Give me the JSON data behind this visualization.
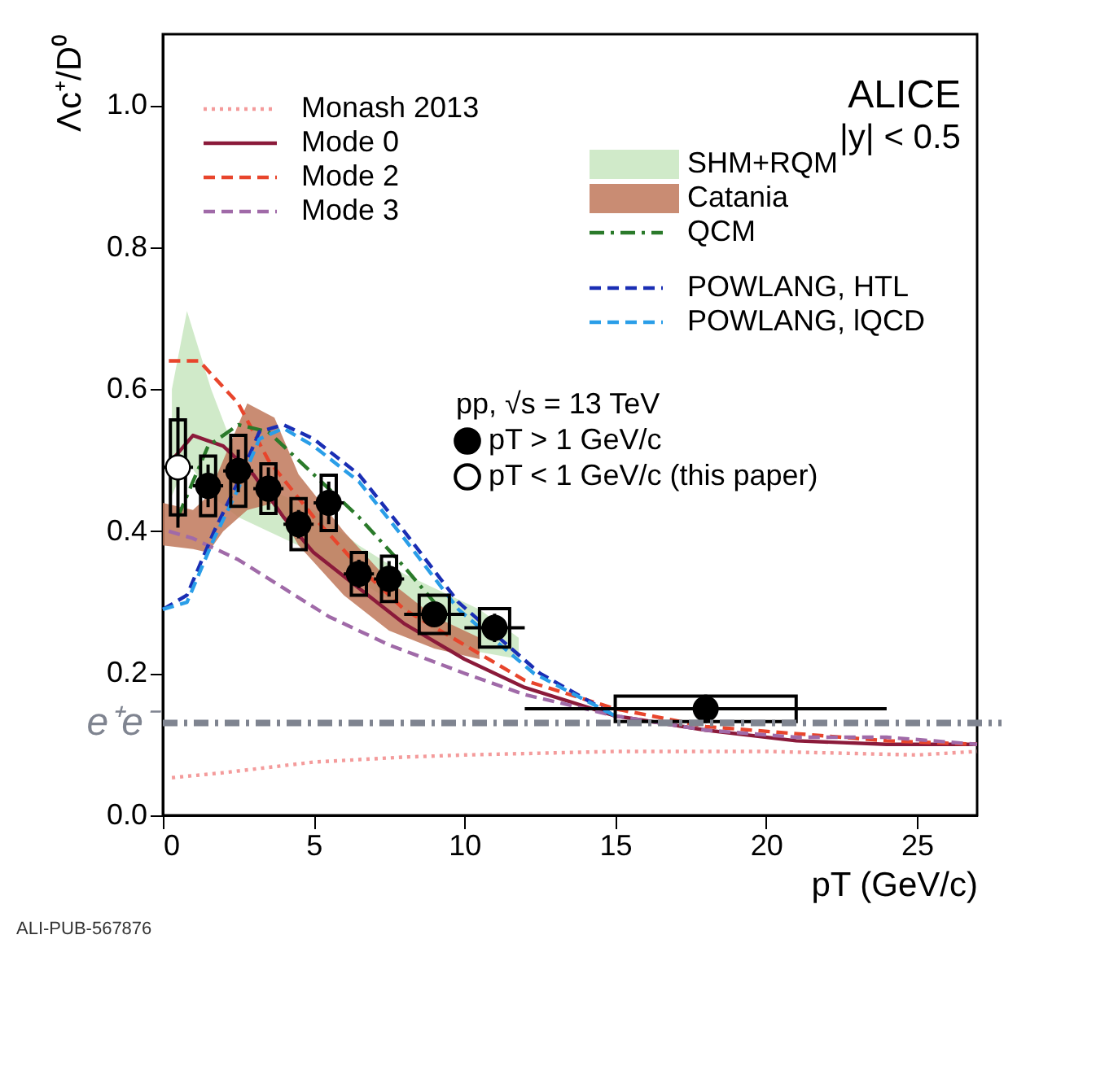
{
  "chart_data": {
    "type": "line",
    "xlabel": "pT (GeV/c)",
    "ylabel": "Λc⁺/D⁰",
    "xlim": [
      0,
      27
    ],
    "ylim": [
      0,
      1.1
    ],
    "xticks": [
      0,
      5,
      10,
      15,
      20,
      25
    ],
    "yticks": [
      {
        "value": 0,
        "label": "0.0"
      },
      {
        "value": 0.2,
        "label": "0.2"
      },
      {
        "value": 0.4,
        "label": "0.4"
      },
      {
        "value": 0.6,
        "label": "0.6"
      },
      {
        "value": 0.8,
        "label": "0.8"
      },
      {
        "value": 1,
        "label": "1.0"
      }
    ],
    "grid": false,
    "legend": "top",
    "annotations": [
      "ALICE",
      "|y| < 0.5",
      "pp, √s = 13 TeV",
      "ALI-PUB-567876"
    ],
    "ref_lines": [
      {
        "axis": "y",
        "value": 0.13,
        "label": "e⁺e⁻",
        "color": "#7f8490",
        "line_style": "dashdot"
      }
    ],
    "series": [
      {
        "name": "Monash 2013",
        "color": "#f49b9b",
        "line_style": "dotted",
        "x": [
          0.3,
          2,
          5,
          8,
          10,
          13,
          15,
          18,
          20,
          23,
          25,
          27
        ],
        "values": [
          0.053,
          0.06,
          0.075,
          0.082,
          0.085,
          0.088,
          0.09,
          0.09,
          0.09,
          0.087,
          0.085,
          0.09
        ]
      },
      {
        "name": "Mode 0",
        "color": "#8b1a3a",
        "line_style": "solid",
        "x": [
          0.3,
          1,
          2,
          3,
          4,
          5,
          6.5,
          8,
          10,
          12,
          15,
          18,
          21,
          24,
          27
        ],
        "values": [
          0.5,
          0.535,
          0.52,
          0.48,
          0.42,
          0.37,
          0.32,
          0.27,
          0.22,
          0.18,
          0.14,
          0.12,
          0.105,
          0.1,
          0.1
        ]
      },
      {
        "name": "Mode 2",
        "color": "#e8452c",
        "line_style": "dashed",
        "x": [
          0.2,
          1.2,
          2.5,
          3.5,
          5,
          6.5,
          8,
          10,
          12,
          15,
          18,
          21,
          24,
          27
        ],
        "values": [
          0.64,
          0.64,
          0.58,
          0.5,
          0.42,
          0.35,
          0.29,
          0.24,
          0.19,
          0.15,
          0.125,
          0.115,
          0.105,
          0.1
        ]
      },
      {
        "name": "Mode 3",
        "color": "#a06aa8",
        "line_style": "dashed",
        "x": [
          0.2,
          1,
          2.5,
          4,
          5.5,
          7.5,
          10,
          12,
          15,
          18,
          21,
          24,
          27
        ],
        "values": [
          0.4,
          0.39,
          0.36,
          0.32,
          0.28,
          0.24,
          0.2,
          0.17,
          0.14,
          0.12,
          0.11,
          0.11,
          0.1
        ]
      },
      {
        "name": "SHM+RQM",
        "type": "area",
        "color": "#c8e6c0",
        "x": [
          0.3,
          0.8,
          1.6,
          2.5,
          3.5,
          5,
          6.5,
          8,
          9,
          10.5,
          11.8
        ],
        "values": [
          null,
          null,
          null,
          null,
          null,
          null,
          null,
          null,
          null,
          null,
          null
        ],
        "lower": [
          0.45,
          0.5,
          0.45,
          0.42,
          0.4,
          0.37,
          0.33,
          0.29,
          0.26,
          0.23,
          0.22
        ],
        "upper": [
          0.6,
          0.71,
          0.6,
          0.5,
          0.46,
          0.43,
          0.38,
          0.34,
          0.32,
          0.29,
          0.25
        ]
      },
      {
        "name": "Catania",
        "type": "area",
        "color": "#c0785a",
        "x": [
          0,
          1,
          1.5,
          2,
          2.8,
          3.7,
          4.5,
          6,
          7.5,
          9,
          10.5
        ],
        "values": [
          null,
          null,
          null,
          null,
          null,
          null,
          null,
          null,
          null,
          null,
          null
        ],
        "lower": [
          0.38,
          0.375,
          0.37,
          0.4,
          0.43,
          0.44,
          0.38,
          0.31,
          0.26,
          0.235,
          0.22
        ],
        "upper": [
          0.44,
          0.43,
          0.45,
          0.5,
          0.58,
          0.56,
          0.48,
          0.4,
          0.33,
          0.28,
          0.25
        ]
      },
      {
        "name": "QCM",
        "color": "#2a7a2a",
        "line_style": "dashdot",
        "x": [
          0.5,
          1.5,
          2.5,
          3.5,
          4.5,
          5.5,
          6.5,
          8,
          9
        ],
        "values": [
          0.42,
          0.52,
          0.55,
          0.54,
          0.5,
          0.46,
          0.42,
          0.35,
          0.3
        ]
      },
      {
        "name": "POWLANG, HTL",
        "color": "#1a2eb4",
        "line_style": "dashed",
        "x": [
          0,
          0.8,
          1.7,
          2.5,
          3.2,
          4,
          5,
          6.5,
          8,
          9.8,
          12.5,
          15
        ],
        "values": [
          0.29,
          0.31,
          0.4,
          0.47,
          0.54,
          0.55,
          0.53,
          0.48,
          0.4,
          0.3,
          0.2,
          0.14
        ]
      },
      {
        "name": "POWLANG, lQCD",
        "color": "#2a9ee8",
        "line_style": "dashed",
        "x": [
          0,
          0.8,
          1.7,
          2.5,
          3.2,
          4,
          5,
          6.5,
          8,
          9.8,
          12.3,
          15
        ],
        "values": [
          0.29,
          0.3,
          0.39,
          0.46,
          0.53,
          0.545,
          0.52,
          0.47,
          0.39,
          0.29,
          0.2,
          0.14
        ]
      },
      {
        "name": "pT > 1 GeV/c",
        "type": "scatter",
        "marker": "circle",
        "color": "#000000",
        "x": [
          1.5,
          2.5,
          3.5,
          4.5,
          5.5,
          6.5,
          7.5,
          9,
          11,
          18
        ],
        "values": [
          0.464,
          0.485,
          0.46,
          0.41,
          0.44,
          0.34,
          0.333,
          0.283,
          0.264,
          0.15
        ],
        "errors": [
          0.03,
          0.03,
          0.03,
          0.02,
          0.03,
          0.02,
          0.025,
          0.015,
          0.02,
          0.02
        ],
        "xerrors": [
          0.5,
          0.5,
          0.5,
          0.5,
          0.5,
          0.5,
          0.5,
          1,
          1,
          [
            12,
            24
          ]
        ]
      },
      {
        "name": "pT < 1 GeV/c (this paper)",
        "type": "scatter",
        "marker": "circle",
        "color": "#ffffff",
        "x": [
          0.5
        ],
        "values": [
          0.49
        ],
        "errors": [
          0.085
        ],
        "xerrors": [
          0.5
        ]
      },
      {
        "type": "bar",
        "color": "#000000",
        "x": [
          0.5,
          1.5,
          2.5,
          3.5,
          4.5,
          5.5,
          6.5,
          7.5,
          9,
          11,
          18
        ],
        "base": [
          0.423,
          0.422,
          0.435,
          0.425,
          0.374,
          0.401,
          0.31,
          0.301,
          0.256,
          0.237,
          0.132
        ],
        "values": [
          0.134,
          0.084,
          0.1,
          0.07,
          0.072,
          0.078,
          0.06,
          0.064,
          0.054,
          0.054,
          0.036
        ]
      }
    ]
  }
}
